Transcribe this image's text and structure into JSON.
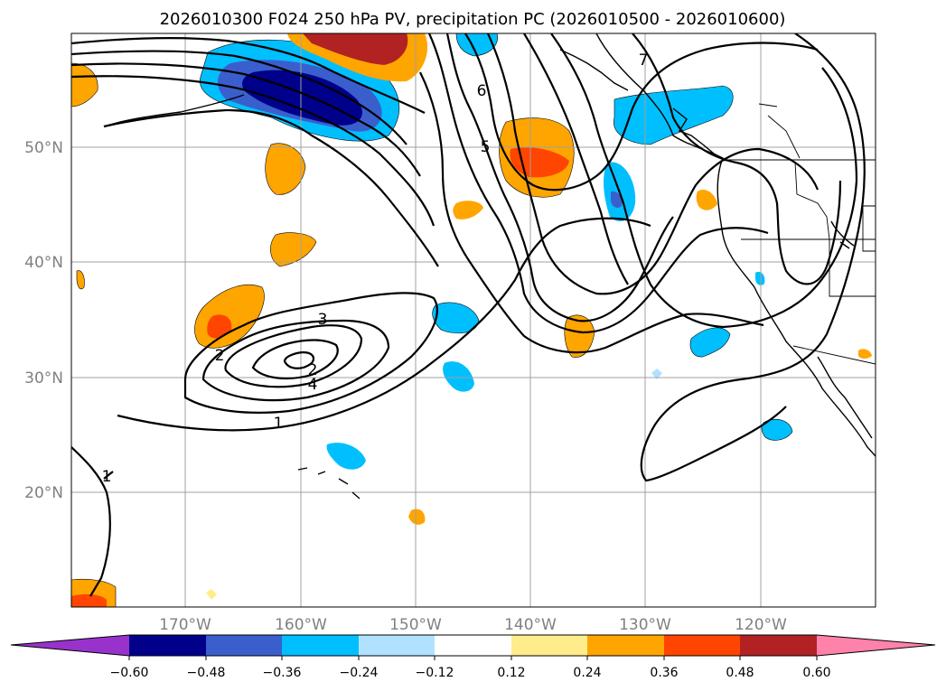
{
  "title": "2026010300 F024 250 hPa PV, precipitation PC (2026010500 - 2026010600)",
  "map": {
    "lon_ticks": [
      "170°W",
      "160°W",
      "150°W",
      "140°W",
      "130°W",
      "120°W"
    ],
    "lat_ticks": [
      "50°N",
      "40°N",
      "30°N",
      "20°N"
    ],
    "pv_contour_labels": [
      "1",
      "2",
      "3",
      "4",
      "5",
      "6",
      "7",
      "2",
      "1"
    ]
  },
  "colorbar": {
    "ticks": [
      "−0.60",
      "−0.48",
      "−0.36",
      "−0.24",
      "−0.12",
      "0.12",
      "0.24",
      "0.36",
      "0.48",
      "0.60"
    ],
    "colors": [
      "#9932cc",
      "#00008b",
      "#3a5fcd",
      "#00bfff",
      "#b0e2ff",
      "#ffffff",
      "#ffec8b",
      "#ffa500",
      "#ff4500",
      "#b22222",
      "#ff82ab"
    ]
  }
}
